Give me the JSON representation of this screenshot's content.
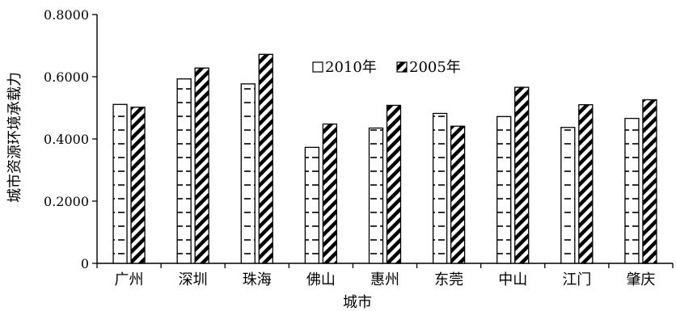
{
  "chart_data": {
    "type": "bar",
    "title": "",
    "xlabel": "城市",
    "ylabel": "城市资源环境承载力",
    "ylim": [
      0,
      0.8
    ],
    "yticks": [
      "0",
      "0.2000",
      "0.4000",
      "0.6000",
      "0.8000"
    ],
    "ytick_values": [
      0,
      0.2,
      0.4,
      0.6,
      0.8
    ],
    "categories": [
      "广州",
      "深圳",
      "珠海",
      "佛山",
      "惠州",
      "东莞",
      "中山",
      "江门",
      "肇庆"
    ],
    "series": [
      {
        "name": "2010年",
        "values": [
          0.511,
          0.593,
          0.577,
          0.373,
          0.435,
          0.482,
          0.472,
          0.437,
          0.466
        ],
        "pattern": "dashed-horizontal"
      },
      {
        "name": "2005年",
        "values": [
          0.502,
          0.628,
          0.672,
          0.448,
          0.508,
          0.441,
          0.566,
          0.51,
          0.526
        ],
        "pattern": "diagonal-hatch"
      }
    ],
    "grid": false,
    "legend_position": "upper-center"
  }
}
